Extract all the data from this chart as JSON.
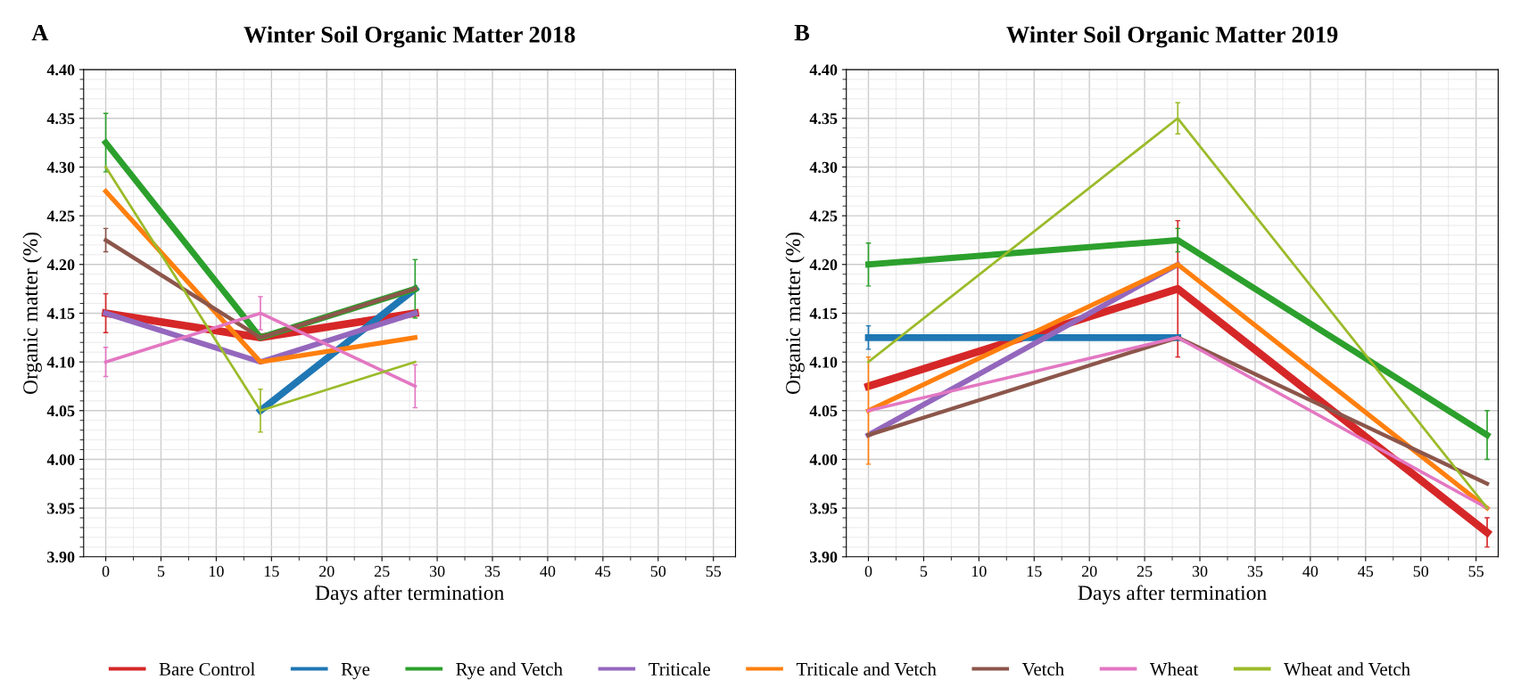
{
  "chart_data": [
    {
      "type": "line",
      "title": "Winter Soil Organic Matter 2018",
      "annotations": [
        "A"
      ],
      "xlabel": "Days after termination",
      "ylabel": "Organic matter (%)",
      "x": [
        0,
        14,
        28
      ],
      "xlim": [
        -2,
        57
      ],
      "xticks": [
        0,
        5,
        10,
        15,
        20,
        25,
        30,
        35,
        40,
        45,
        50,
        55
      ],
      "ylim": [
        3.9,
        4.4
      ],
      "yticks": [
        {
          "value": 3.9,
          "label": "3.90"
        },
        {
          "value": 3.95,
          "label": "3.95"
        },
        {
          "value": 4.0,
          "label": "4.00"
        },
        {
          "value": 4.05,
          "label": "4.05"
        },
        {
          "value": 4.1,
          "label": "4.10"
        },
        {
          "value": 4.15,
          "label": "4.15"
        },
        {
          "value": 4.2,
          "label": "4.20"
        },
        {
          "value": 4.25,
          "label": "4.25"
        },
        {
          "value": 4.3,
          "label": "4.30"
        },
        {
          "value": 4.35,
          "label": "4.35"
        },
        {
          "value": 4.4,
          "label": "4.40"
        }
      ],
      "grid": true,
      "legend": "bottom",
      "series": [
        {
          "name": "Bare Control",
          "color": "#d62728",
          "values": [
            4.15,
            4.125,
            4.15
          ],
          "errors": [
            0.02,
            null,
            null
          ]
        },
        {
          "name": "Rye",
          "color": "#1f77b4",
          "values": [
            null,
            4.05,
            4.175
          ]
        },
        {
          "name": "Rye and Vetch",
          "color": "#2ca02c",
          "values": [
            4.325,
            4.125,
            4.175
          ],
          "errors": [
            0.03,
            null,
            0.03
          ]
        },
        {
          "name": "Triticale",
          "color": "#9467bd",
          "values": [
            4.15,
            4.1,
            4.15
          ]
        },
        {
          "name": "Triticale and Vetch",
          "color": "#ff7f0e",
          "values": [
            4.275,
            4.1,
            4.125
          ]
        },
        {
          "name": "Vetch",
          "color": "#8c564b",
          "values": [
            4.225,
            4.125,
            4.175
          ],
          "errors": [
            0.012,
            null,
            null
          ]
        },
        {
          "name": "Wheat",
          "color": "#e377c2",
          "values": [
            4.1,
            4.15,
            4.075
          ],
          "errors": [
            0.015,
            0.017,
            0.022
          ]
        },
        {
          "name": "Wheat and Vetch",
          "color": "#9bbb2a",
          "values": [
            4.3,
            4.05,
            4.1
          ],
          "errors": [
            null,
            0.022,
            null
          ]
        }
      ]
    },
    {
      "type": "line",
      "title": "Winter Soil Organic Matter 2019",
      "annotations": [
        "B"
      ],
      "xlabel": "Days after termination",
      "ylabel": "Organic matter (%)",
      "x": [
        0,
        28,
        56
      ],
      "xlim": [
        -2,
        57
      ],
      "xticks": [
        0,
        5,
        10,
        15,
        20,
        25,
        30,
        35,
        40,
        45,
        50,
        55
      ],
      "ylim": [
        3.9,
        4.4
      ],
      "yticks": [
        {
          "value": 3.9,
          "label": "3.90"
        },
        {
          "value": 3.95,
          "label": "3.95"
        },
        {
          "value": 4.0,
          "label": "4.00"
        },
        {
          "value": 4.05,
          "label": "4.05"
        },
        {
          "value": 4.1,
          "label": "4.10"
        },
        {
          "value": 4.15,
          "label": "4.15"
        },
        {
          "value": 4.2,
          "label": "4.20"
        },
        {
          "value": 4.25,
          "label": "4.25"
        },
        {
          "value": 4.3,
          "label": "4.30"
        },
        {
          "value": 4.35,
          "label": "4.35"
        },
        {
          "value": 4.4,
          "label": "4.40"
        }
      ],
      "grid": true,
      "series": [
        {
          "name": "Bare Control",
          "color": "#d62728",
          "values": [
            4.075,
            4.175,
            3.925
          ],
          "errors": [
            null,
            0.07,
            0.015
          ]
        },
        {
          "name": "Rye",
          "color": "#1f77b4",
          "values": [
            4.125,
            4.125,
            null
          ],
          "errors": [
            0.012,
            null,
            null
          ]
        },
        {
          "name": "Rye and Vetch",
          "color": "#2ca02c",
          "values": [
            4.2,
            4.225,
            4.025
          ],
          "errors": [
            0.022,
            0.012,
            0.025
          ]
        },
        {
          "name": "Triticale",
          "color": "#9467bd",
          "values": [
            4.025,
            4.2,
            null
          ]
        },
        {
          "name": "Triticale and Vetch",
          "color": "#ff7f0e",
          "values": [
            4.05,
            4.2,
            3.95
          ],
          "errors": [
            0.055,
            null,
            null
          ]
        },
        {
          "name": "Vetch",
          "color": "#8c564b",
          "values": [
            4.025,
            4.125,
            3.975
          ]
        },
        {
          "name": "Wheat",
          "color": "#e377c2",
          "values": [
            4.05,
            4.125,
            3.95
          ]
        },
        {
          "name": "Wheat and Vetch",
          "color": "#9bbb2a",
          "values": [
            4.1,
            4.35,
            3.95
          ],
          "errors": [
            null,
            0.016,
            null
          ]
        }
      ]
    }
  ]
}
